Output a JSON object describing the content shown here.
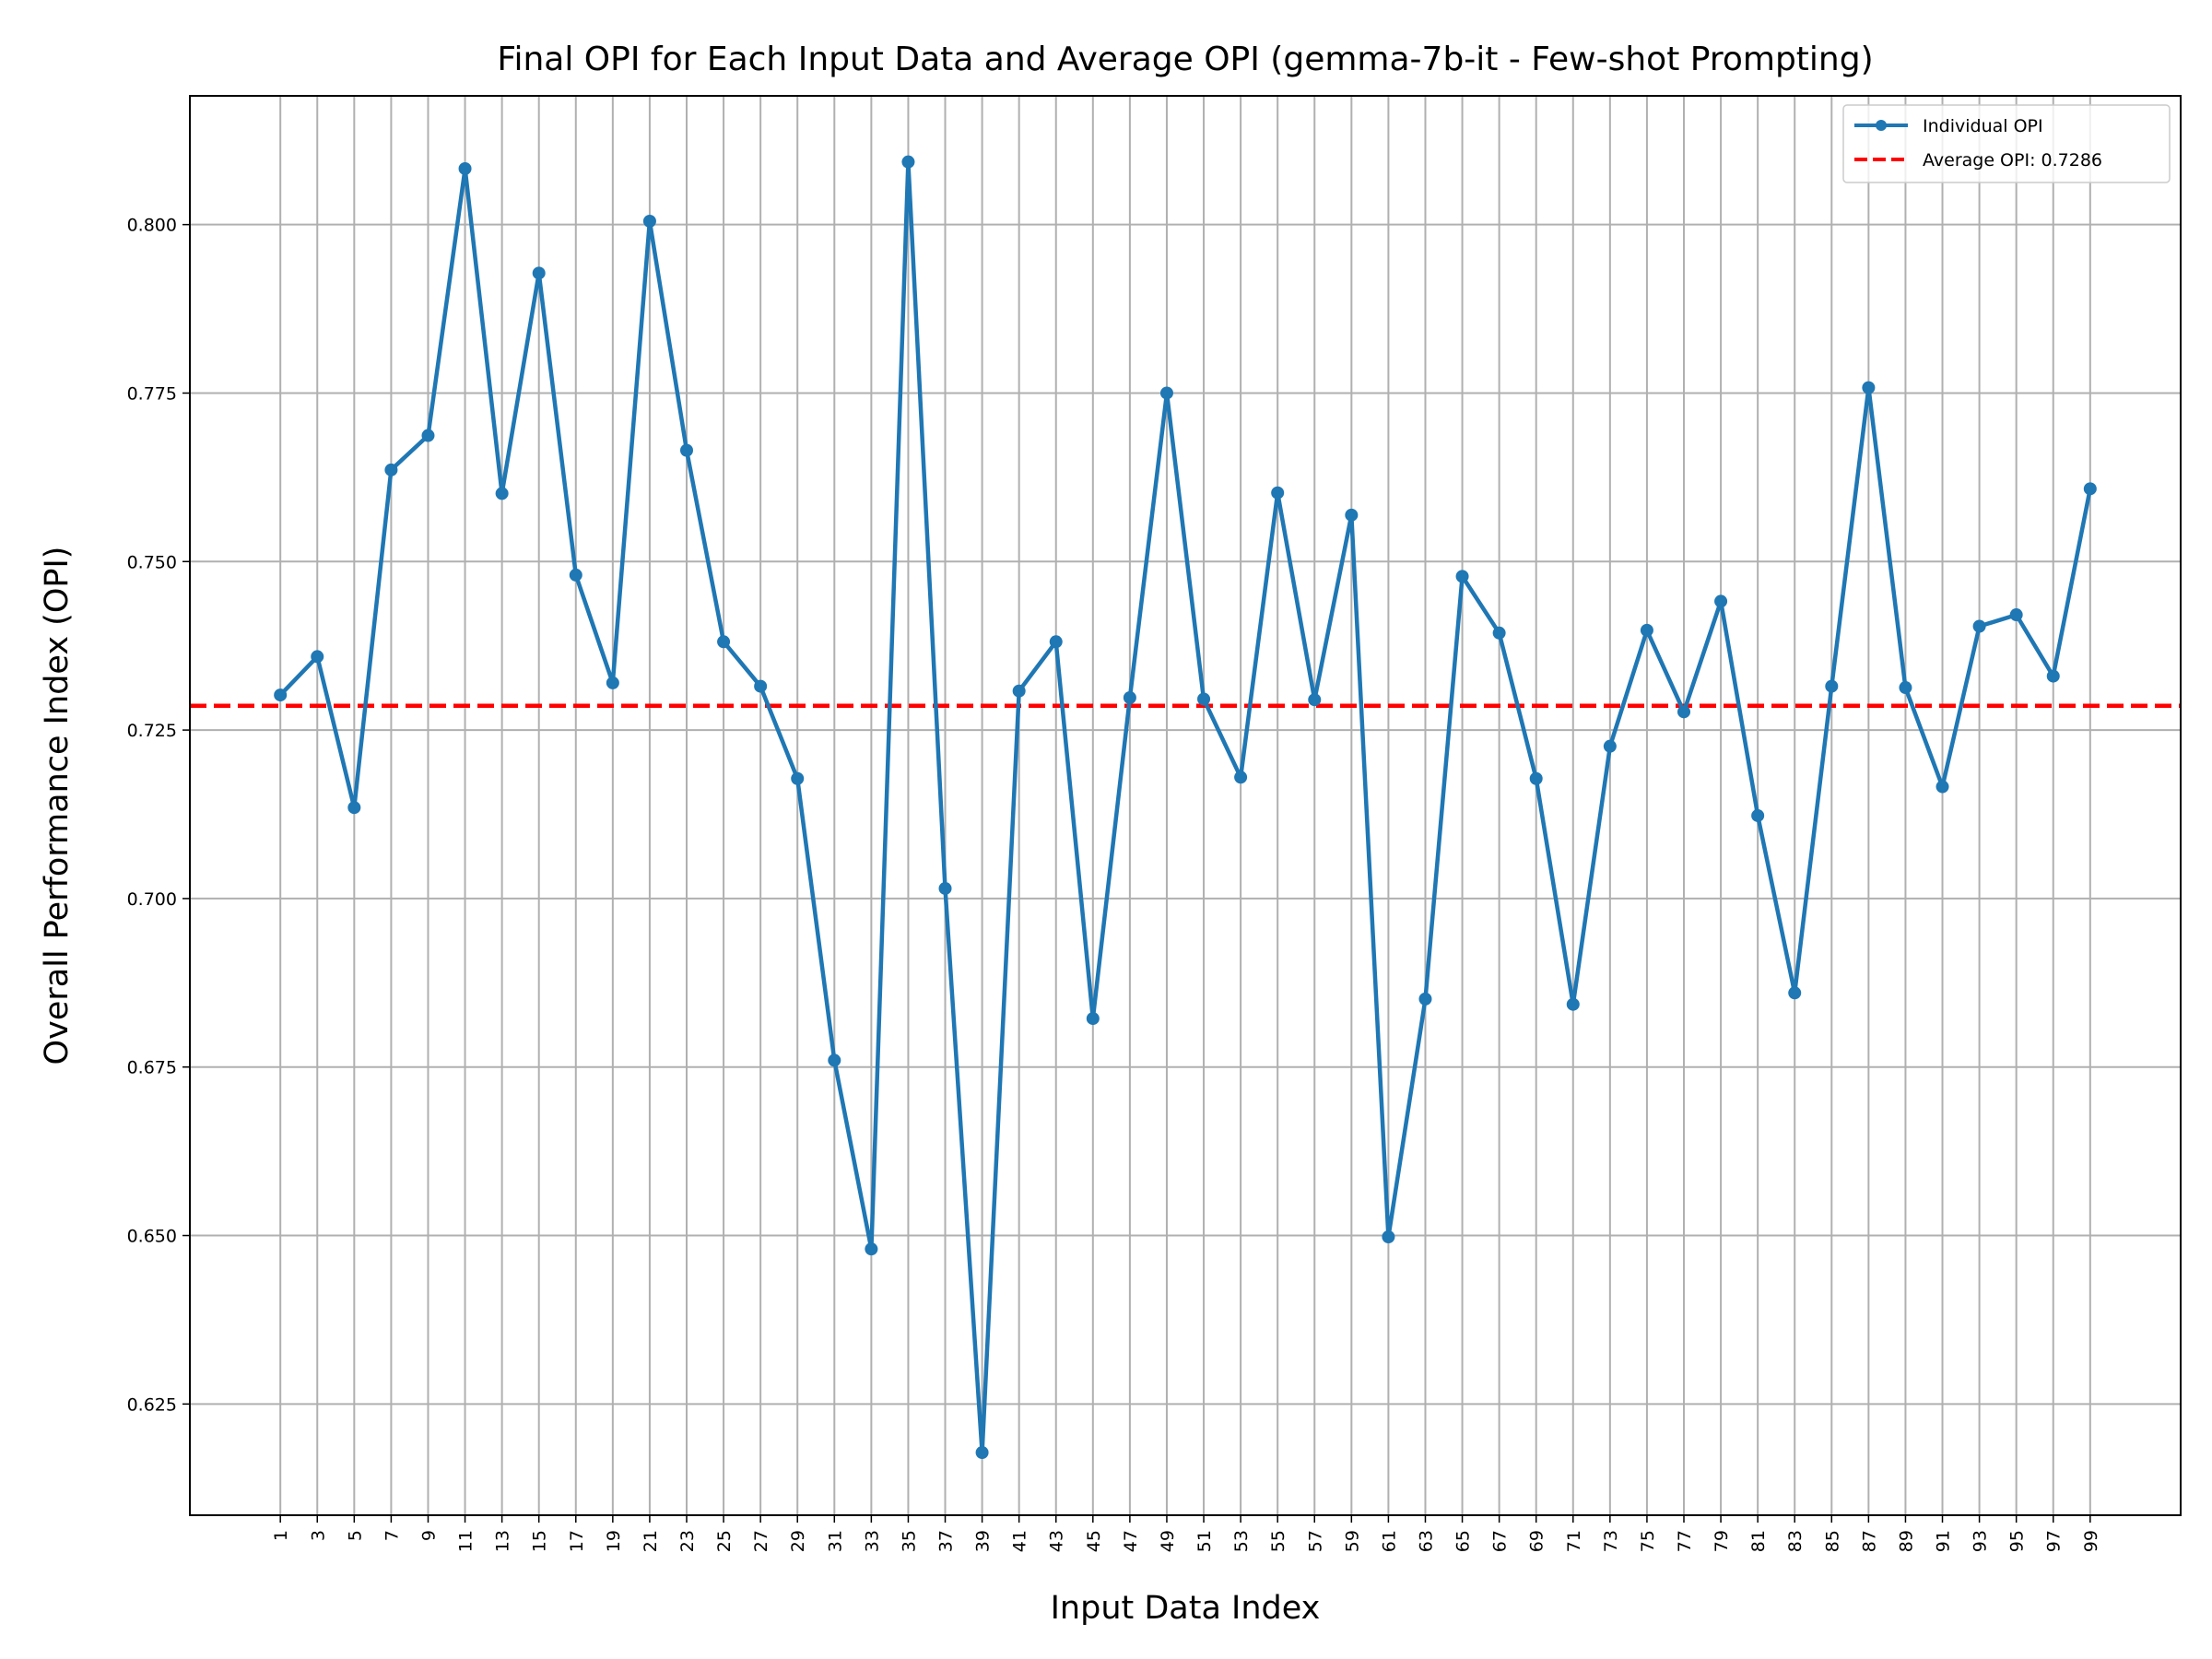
{
  "chart_data": {
    "type": "line",
    "title": "Final OPI for Each Input Data and Average OPI (gemma-7b-it - Few-shot Prompting)",
    "xlabel": "Input Data Index",
    "ylabel": "Overall Performance Index (OPI)",
    "x": [
      1,
      3,
      5,
      7,
      9,
      11,
      13,
      15,
      17,
      19,
      21,
      23,
      25,
      27,
      29,
      31,
      33,
      35,
      37,
      39,
      41,
      43,
      45,
      47,
      49,
      51,
      53,
      55,
      57,
      59,
      61,
      63,
      65,
      67,
      69,
      71,
      73,
      75,
      77,
      79,
      81,
      83,
      85,
      87,
      89,
      91,
      93,
      95,
      97,
      99
    ],
    "x_ticks": [
      "1",
      "3",
      "5",
      "7",
      "9",
      "11",
      "13",
      "15",
      "17",
      "19",
      "21",
      "23",
      "25",
      "27",
      "29",
      "31",
      "33",
      "35",
      "37",
      "39",
      "41",
      "43",
      "45",
      "47",
      "49",
      "51",
      "53",
      "55",
      "57",
      "59",
      "61",
      "63",
      "65",
      "67",
      "69",
      "71",
      "73",
      "75",
      "77",
      "79",
      "81",
      "83",
      "85",
      "87",
      "89",
      "91",
      "93",
      "95",
      "97",
      "99"
    ],
    "y_ticks": [
      "0.625",
      "0.650",
      "0.675",
      "0.700",
      "0.725",
      "0.750",
      "0.775",
      "0.800"
    ],
    "xlim": [
      -3.9,
      103.9
    ],
    "ylim": [
      0.6085,
      0.8191
    ],
    "grid": true,
    "legend_position": "upper right",
    "series": [
      {
        "name": "Individual OPI",
        "color": "#1f77b4",
        "style": "solid line with circle markers",
        "values": [
          0.7302,
          0.7359,
          0.7135,
          0.7636,
          0.7687,
          0.8083,
          0.7601,
          0.7928,
          0.748,
          0.732,
          0.8005,
          0.7665,
          0.7381,
          0.7315,
          0.7178,
          0.676,
          0.648,
          0.8093,
          0.7015,
          0.6178,
          0.7308,
          0.7381,
          0.6822,
          0.7298,
          0.775,
          0.7296,
          0.718,
          0.7602,
          0.7295,
          0.7569,
          0.6498,
          0.6851,
          0.7478,
          0.7394,
          0.7178,
          0.6843,
          0.7226,
          0.7398,
          0.7277,
          0.7441,
          0.7123,
          0.686,
          0.7315,
          0.7758,
          0.7313,
          0.7166,
          0.7404,
          0.7421,
          0.733,
          0.7608
        ]
      },
      {
        "name": "Average OPI: 0.7286",
        "color": "#ff0000",
        "style": "dashed horizontal line",
        "value": 0.7286
      }
    ]
  }
}
